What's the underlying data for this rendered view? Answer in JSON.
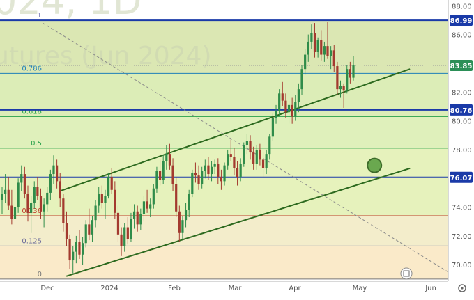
{
  "watermark": {
    "line1": "024, 1D",
    "line2": "utures (Jun 2024)"
  },
  "fib": [
    {
      "ratio": "1",
      "price": 86.99,
      "color": "#2e2e8f",
      "fill": "#dbe7b3"
    },
    {
      "ratio": "0.786",
      "price": 83.3,
      "color": "#1f7fb8",
      "fill": "#dcedb7"
    },
    {
      "ratio": "0.618",
      "price": 80.3,
      "color": "#27a04a",
      "fill": "#dff0bb"
    },
    {
      "ratio": "0.5",
      "price": 78.1,
      "color": "#27a04a",
      "fill": "#e6f2bc"
    },
    {
      "ratio": "0.236",
      "price": 73.4,
      "color": "#c0392b",
      "fill": "#f3edcb"
    },
    {
      "ratio": "0.125",
      "price": 71.3,
      "color": "#6b6b9a",
      "fill": "#faeac9"
    },
    {
      "ratio": "0",
      "price": 69.0,
      "color": "#777777",
      "fill": "#ffffff"
    }
  ],
  "price_lines": [
    {
      "label": "86.99",
      "value": 86.99
    },
    {
      "label": "80.76",
      "value": 80.76
    },
    {
      "label": "76.07",
      "value": 76.07
    }
  ],
  "current_price": {
    "label": "83.85",
    "value": 83.85,
    "color": "#2b8f57"
  },
  "chart_data": {
    "type": "candlestick",
    "y_axis": {
      "position": "right",
      "ticks": [
        70.0,
        72.0,
        74.0,
        76.0,
        78.0,
        80.0,
        82.0,
        84.0,
        86.0,
        88.0
      ]
    },
    "x_axis": {
      "labels": [
        "Dec",
        "2024",
        "Feb",
        "Mar",
        "Apr",
        "May",
        "Jun"
      ]
    },
    "candles": [
      [
        74.5,
        75.4,
        73.5,
        74.9
      ],
      [
        74.9,
        76.3,
        74.3,
        75.2
      ],
      [
        75.2,
        76.1,
        73.8,
        74.1
      ],
      [
        74.1,
        75.2,
        72.8,
        73.2
      ],
      [
        73.2,
        74.4,
        72.4,
        74.0
      ],
      [
        74.0,
        76.0,
        73.6,
        75.7
      ],
      [
        75.7,
        76.9,
        75.1,
        76.3
      ],
      [
        76.3,
        76.8,
        74.6,
        74.9
      ],
      [
        74.9,
        75.5,
        73.0,
        73.6
      ],
      [
        73.6,
        74.8,
        72.2,
        74.3
      ],
      [
        74.3,
        75.8,
        73.9,
        75.4
      ],
      [
        75.4,
        76.1,
        74.5,
        74.8
      ],
      [
        74.8,
        75.3,
        73.2,
        73.7
      ],
      [
        73.7,
        74.6,
        72.6,
        74.2
      ],
      [
        74.2,
        75.4,
        73.7,
        75.0
      ],
      [
        75.0,
        76.6,
        74.5,
        76.3
      ],
      [
        76.3,
        77.6,
        75.6,
        76.9
      ],
      [
        76.9,
        77.3,
        75.3,
        75.8
      ],
      [
        75.8,
        76.4,
        74.0,
        74.6
      ],
      [
        74.6,
        74.9,
        72.3,
        72.9
      ],
      [
        72.9,
        73.7,
        71.3,
        71.8
      ],
      [
        71.8,
        72.1,
        69.7,
        70.3
      ],
      [
        70.3,
        71.3,
        69.4,
        70.9
      ],
      [
        70.9,
        72.0,
        70.1,
        71.6
      ],
      [
        71.6,
        72.4,
        70.4,
        70.7
      ],
      [
        70.7,
        71.9,
        70.0,
        71.5
      ],
      [
        71.5,
        73.1,
        71.2,
        72.8
      ],
      [
        72.8,
        73.9,
        71.7,
        72.1
      ],
      [
        72.1,
        73.4,
        71.6,
        73.1
      ],
      [
        73.1,
        74.5,
        72.6,
        74.1
      ],
      [
        74.1,
        75.4,
        73.6,
        74.9
      ],
      [
        74.9,
        75.5,
        73.9,
        74.3
      ],
      [
        74.3,
        75.2,
        73.2,
        74.8
      ],
      [
        74.8,
        76.4,
        74.6,
        76.1
      ],
      [
        76.1,
        76.7,
        74.9,
        75.2
      ],
      [
        75.2,
        75.8,
        73.2,
        73.6
      ],
      [
        73.6,
        74.1,
        71.6,
        72.1
      ],
      [
        72.1,
        72.6,
        70.6,
        71.3
      ],
      [
        71.3,
        72.9,
        70.9,
        72.6
      ],
      [
        72.6,
        73.3,
        71.4,
        71.8
      ],
      [
        71.8,
        73.6,
        71.6,
        73.2
      ],
      [
        73.2,
        74.2,
        72.5,
        73.7
      ],
      [
        73.7,
        74.1,
        72.3,
        72.8
      ],
      [
        72.8,
        73.9,
        72.4,
        73.5
      ],
      [
        73.5,
        74.8,
        73.0,
        74.4
      ],
      [
        74.4,
        75.2,
        73.6,
        73.9
      ],
      [
        73.9,
        74.6,
        73.3,
        74.2
      ],
      [
        74.2,
        75.6,
        73.9,
        75.3
      ],
      [
        75.3,
        76.8,
        75.0,
        76.5
      ],
      [
        76.5,
        77.3,
        75.5,
        75.9
      ],
      [
        75.9,
        77.6,
        75.6,
        77.2
      ],
      [
        77.2,
        78.3,
        76.6,
        77.7
      ],
      [
        77.7,
        78.4,
        76.6,
        76.9
      ],
      [
        76.9,
        77.4,
        75.1,
        75.6
      ],
      [
        75.6,
        76.1,
        73.3,
        73.7
      ],
      [
        73.7,
        74.1,
        71.6,
        72.2
      ],
      [
        72.2,
        73.4,
        71.8,
        73.1
      ],
      [
        73.1,
        74.3,
        72.6,
        73.8
      ],
      [
        73.8,
        75.2,
        73.3,
        74.9
      ],
      [
        74.9,
        76.6,
        74.7,
        76.4
      ],
      [
        76.4,
        77.1,
        75.7,
        76.2
      ],
      [
        76.2,
        76.9,
        75.2,
        75.6
      ],
      [
        75.6,
        76.8,
        75.3,
        76.5
      ],
      [
        76.5,
        77.3,
        76.0,
        76.9
      ],
      [
        76.9,
        77.5,
        75.9,
        76.3
      ],
      [
        76.3,
        77.2,
        75.8,
        76.8
      ],
      [
        76.8,
        77.3,
        76.3,
        77.0
      ],
      [
        77.0,
        77.4,
        75.6,
        76.1
      ],
      [
        76.1,
        76.6,
        75.2,
        75.8
      ],
      [
        75.8,
        77.1,
        75.5,
        76.9
      ],
      [
        76.9,
        78.0,
        76.6,
        77.7
      ],
      [
        77.7,
        78.7,
        77.2,
        77.5
      ],
      [
        77.5,
        78.1,
        76.2,
        76.7
      ],
      [
        76.7,
        77.2,
        75.5,
        76.1
      ],
      [
        76.1,
        77.4,
        75.8,
        77.0
      ],
      [
        77.0,
        78.5,
        76.8,
        78.3
      ],
      [
        78.3,
        79.1,
        77.7,
        78.6
      ],
      [
        78.6,
        79.0,
        77.3,
        77.8
      ],
      [
        77.8,
        78.2,
        76.6,
        77.0
      ],
      [
        77.0,
        78.3,
        76.6,
        78.0
      ],
      [
        78.0,
        78.4,
        76.9,
        77.3
      ],
      [
        77.3,
        77.8,
        76.1,
        76.7
      ],
      [
        76.7,
        78.0,
        76.3,
        77.7
      ],
      [
        77.7,
        79.1,
        77.3,
        78.9
      ],
      [
        78.9,
        80.5,
        78.6,
        80.2
      ],
      [
        80.2,
        81.1,
        79.8,
        80.7
      ],
      [
        80.7,
        82.2,
        80.3,
        81.9
      ],
      [
        81.9,
        82.7,
        81.0,
        81.4
      ],
      [
        81.4,
        81.9,
        80.2,
        80.6
      ],
      [
        80.6,
        81.4,
        79.8,
        81.1
      ],
      [
        81.1,
        81.6,
        79.8,
        80.3
      ],
      [
        80.3,
        81.8,
        80.0,
        81.3
      ],
      [
        81.3,
        82.6,
        80.6,
        82.2
      ],
      [
        82.2,
        83.9,
        81.8,
        83.6
      ],
      [
        83.6,
        85.0,
        83.2,
        84.6
      ],
      [
        84.6,
        86.0,
        84.1,
        85.5
      ],
      [
        85.5,
        86.7,
        85.0,
        86.1
      ],
      [
        86.1,
        86.8,
        84.4,
        84.8
      ],
      [
        84.8,
        85.8,
        84.4,
        85.6
      ],
      [
        85.6,
        86.3,
        84.2,
        84.6
      ],
      [
        84.6,
        85.5,
        84.1,
        85.2
      ],
      [
        85.2,
        86.9,
        84.3,
        84.5
      ],
      [
        84.5,
        85.2,
        83.6,
        84.9
      ],
      [
        84.9,
        85.3,
        83.4,
        83.8
      ],
      [
        83.8,
        84.1,
        81.8,
        82.2
      ],
      [
        82.2,
        82.8,
        81.6,
        82.4
      ],
      [
        82.4,
        82.6,
        80.9,
        82.1
      ],
      [
        82.1,
        83.9,
        81.9,
        83.6
      ],
      [
        83.6,
        84.1,
        82.6,
        83.0
      ],
      [
        83.0,
        84.5,
        82.8,
        83.85
      ]
    ],
    "trendlines": [
      {
        "kind": "channel-upper",
        "points": [
          [
            0.125,
            75.1
          ],
          [
            0.865,
            83.6
          ]
        ]
      },
      {
        "kind": "channel-lower",
        "points": [
          [
            0.14,
            69.2
          ],
          [
            0.865,
            76.7
          ]
        ]
      },
      {
        "kind": "dashed-diagonal",
        "points": [
          [
            0.09,
            86.8
          ],
          [
            0.945,
            69.5
          ]
        ]
      }
    ],
    "target_marker": {
      "x": 0.79,
      "value": 76.9
    },
    "colors": {
      "up": "#2f8c4a",
      "down": "#a33a2f",
      "channel": "#2d6a1f"
    }
  }
}
